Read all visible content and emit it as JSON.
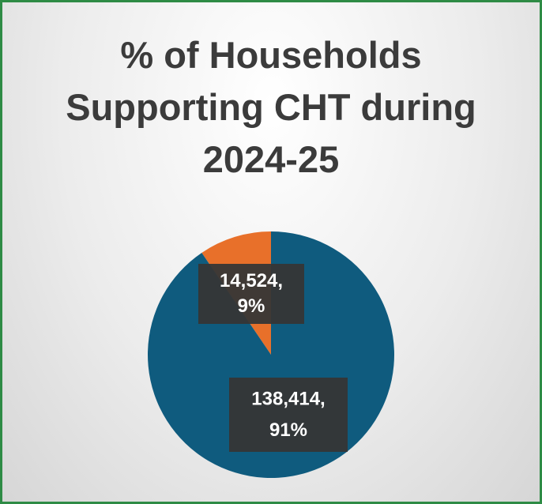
{
  "chart_data": {
    "type": "pie",
    "title": "% of Households Supporting CHT during 2024-25",
    "values": [
      14524,
      138414
    ],
    "value_labels": [
      "14,524,",
      "138,414,"
    ],
    "percents": [
      9,
      91
    ],
    "percent_labels": [
      "9%",
      "91%"
    ],
    "colors": [
      "#e8702a",
      "#0f5b7e"
    ],
    "start_angle": 0,
    "direction": "counterclockwise"
  }
}
